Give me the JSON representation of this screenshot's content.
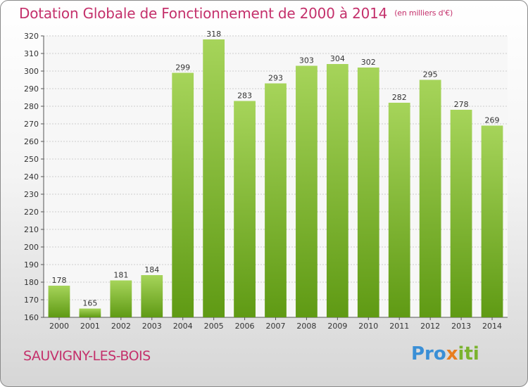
{
  "title": "Dotation Globale de Fonctionnement de 2000 à 2014",
  "subtitle": "(en milliers d'€)",
  "commune": "SAUVIGNY-LES-BOIS",
  "logo": {
    "part1": "Pro",
    "part2": "x",
    "part3": "iti"
  },
  "colors": {
    "title": "#c4306b",
    "bar_light": "#a6d45a",
    "bar_dark": "#5f9a14",
    "grid": "#cccccc"
  },
  "chart_data": {
    "type": "bar",
    "title": "Dotation Globale de Fonctionnement de 2000 à 2014",
    "subtitle": "(en milliers d'€)",
    "categories": [
      "2000",
      "2001",
      "2002",
      "2003",
      "2004",
      "2005",
      "2006",
      "2007",
      "2008",
      "2009",
      "2010",
      "2011",
      "2012",
      "2013",
      "2014"
    ],
    "values": [
      178,
      165,
      181,
      184,
      299,
      318,
      283,
      293,
      303,
      304,
      302,
      282,
      295,
      278,
      269
    ],
    "ylim": [
      160,
      320
    ],
    "yticks": [
      160,
      170,
      180,
      190,
      200,
      210,
      220,
      230,
      240,
      250,
      260,
      270,
      280,
      290,
      300,
      310,
      320
    ],
    "grid": true,
    "data_labels": true
  }
}
